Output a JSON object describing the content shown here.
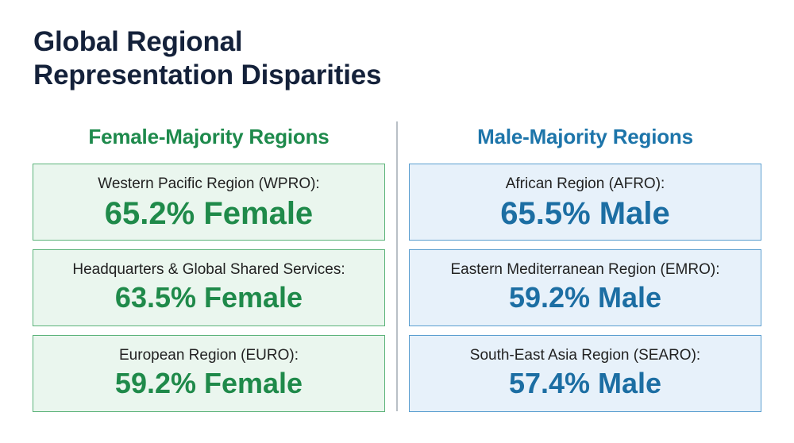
{
  "title": {
    "line1": "Global Regional",
    "line2": "Representation Disparities"
  },
  "female": {
    "heading": "Female-Majority Regions",
    "cards": [
      {
        "label": "Western Pacific Region (WPRO):",
        "value": "65.2% Female"
      },
      {
        "label": "Headquarters & Global Shared Services:",
        "value": "63.5% Female"
      },
      {
        "label": "European Region (EURO):",
        "value": "59.2% Female"
      }
    ]
  },
  "male": {
    "heading": "Male-Majority Regions",
    "cards": [
      {
        "label": "African Region (AFRO):",
        "value": "65.5% Male"
      },
      {
        "label": "Eastern Mediterranean Region (EMRO):",
        "value": "59.2% Male"
      },
      {
        "label": "South-East Asia Region (SEARO):",
        "value": "57.4% Male"
      }
    ]
  },
  "colors": {
    "female_accent": "#1e8a4c",
    "male_accent": "#1d75aa",
    "title": "#14213a"
  }
}
